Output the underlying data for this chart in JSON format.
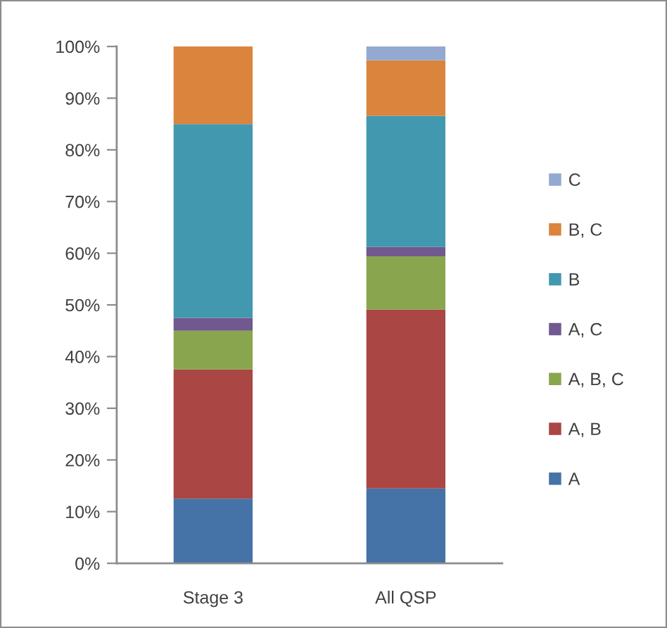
{
  "chart_data": {
    "type": "bar",
    "stacked": true,
    "categories": [
      "Stage 3",
      "All QSP"
    ],
    "series": [
      {
        "name": "A",
        "color": "#4572a7",
        "values": [
          12.5,
          14.5
        ]
      },
      {
        "name": "A, B",
        "color": "#aa4643",
        "values": [
          25,
          34.6
        ]
      },
      {
        "name": "A, B, C",
        "color": "#89a54e",
        "values": [
          7.5,
          10.3
        ]
      },
      {
        "name": "A, C",
        "color": "#71588f",
        "values": [
          2.5,
          1.8
        ]
      },
      {
        "name": "B",
        "color": "#4198af",
        "values": [
          37.5,
          25.4
        ]
      },
      {
        "name": "B, C",
        "color": "#db843d",
        "values": [
          15,
          10.7
        ]
      },
      {
        "name": "C",
        "color": "#93a9cf",
        "values": [
          null,
          2.7
        ]
      }
    ],
    "ylim": [
      0,
      100
    ],
    "yticks": [
      {
        "value": 0,
        "label": "0%"
      },
      {
        "value": 10,
        "label": "10%"
      },
      {
        "value": 20,
        "label": "20%"
      },
      {
        "value": 30,
        "label": "30%"
      },
      {
        "value": 40,
        "label": "40%"
      },
      {
        "value": 50,
        "label": "50%"
      },
      {
        "value": 60,
        "label": "60%"
      },
      {
        "value": 70,
        "label": "70%"
      },
      {
        "value": 80,
        "label": "80%"
      },
      {
        "value": 90,
        "label": "90%"
      },
      {
        "value": 100,
        "label": "100%"
      }
    ],
    "legend": "right"
  }
}
